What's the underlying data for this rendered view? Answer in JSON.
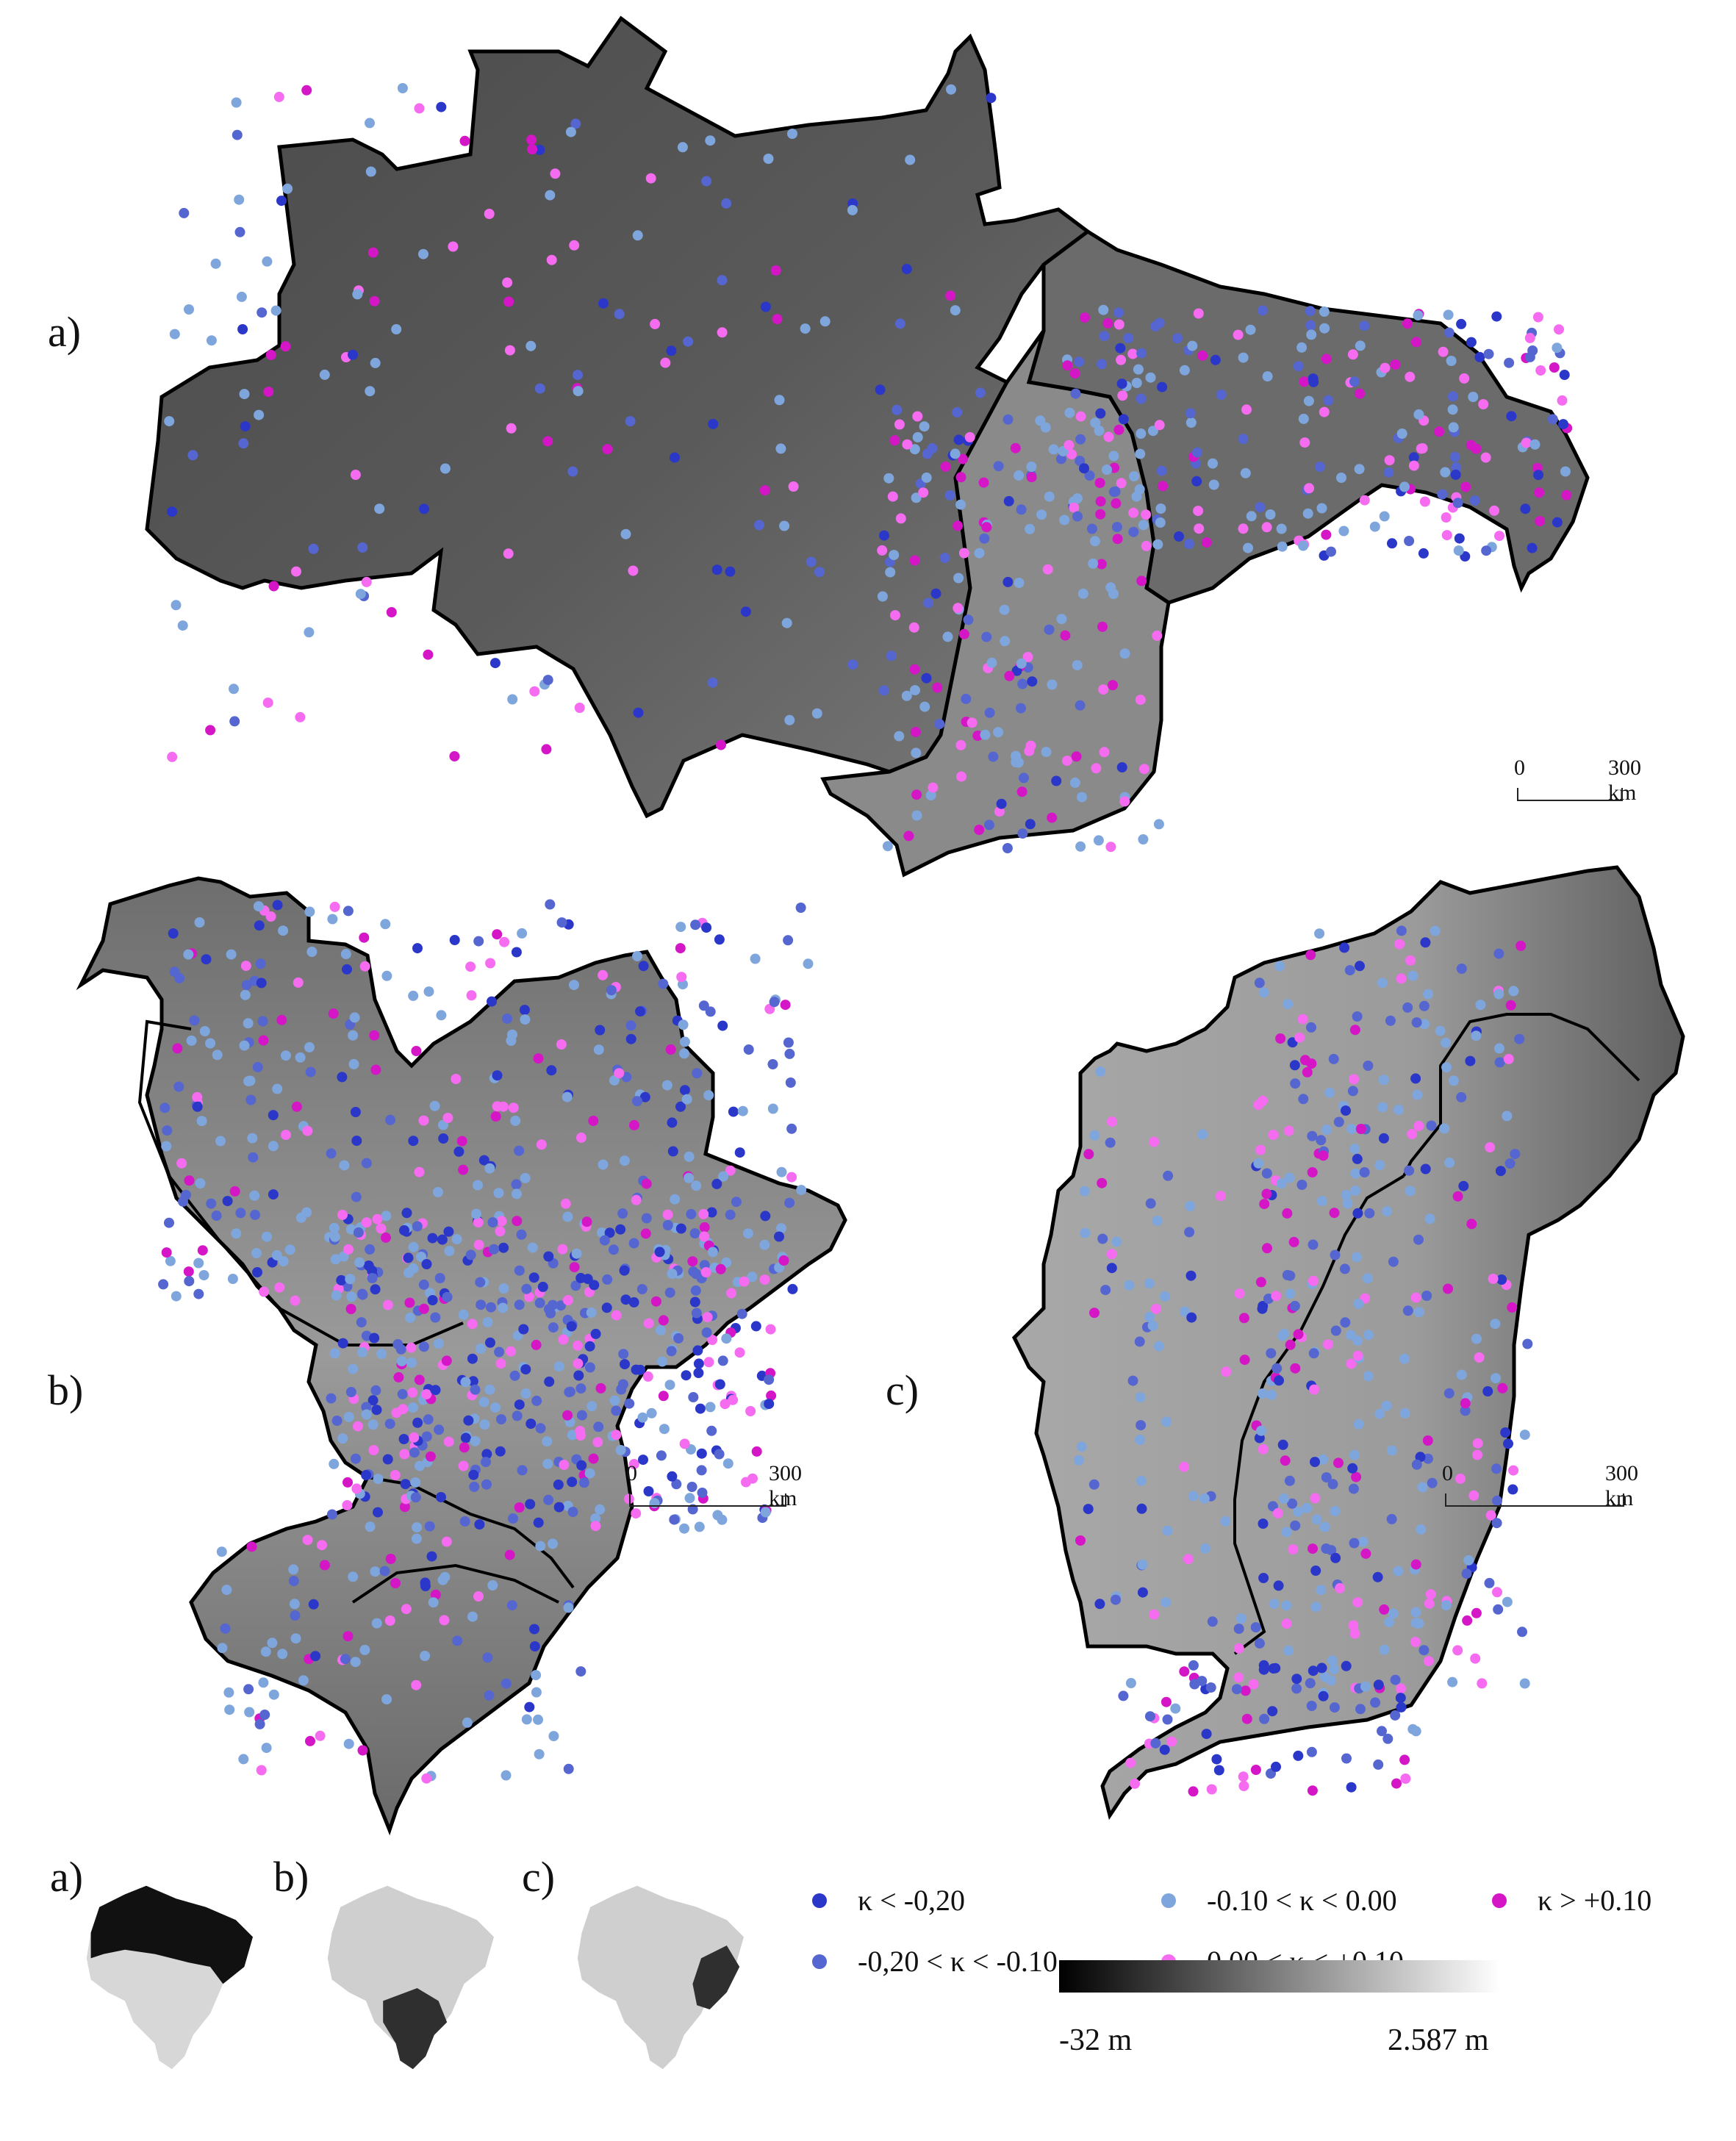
{
  "panels": [
    {
      "label": "a)"
    },
    {
      "label": "b)"
    },
    {
      "label": "c)"
    }
  ],
  "scale_bars": [
    {
      "start": "0",
      "end": "300 km"
    },
    {
      "start": "0",
      "end": "300 km"
    },
    {
      "start": "0",
      "end": "300 km"
    }
  ],
  "inset_labels": [
    "a)",
    "b)",
    "c)"
  ],
  "legend": {
    "items": [
      {
        "label": "κ < -0,20",
        "color": "#2b37c9"
      },
      {
        "label": "-0,20 < κ < -0.10",
        "color": "#5566d0"
      },
      {
        "label": "-0.10 < κ < 0.00",
        "color": "#7fa6dc"
      },
      {
        "label": "0.00 < κ < +0.10",
        "color": "#f56cf0"
      },
      {
        "label": "κ > +0.10",
        "color": "#d416c6"
      }
    ]
  },
  "elevation_scale": {
    "min": "-32 m",
    "max": "2.587 m"
  },
  "colors": {
    "boundary": "#000000",
    "low": "#000000",
    "high": "#ffffff"
  }
}
